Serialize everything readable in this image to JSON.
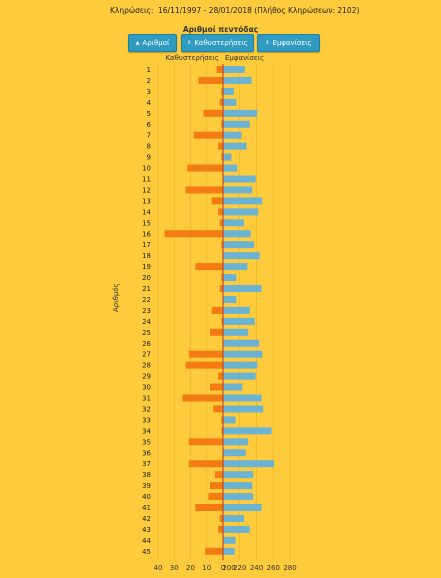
{
  "header": {
    "draws_label": "Κληρώσεις:",
    "range_text": "16/11/1997 - 28/01/2018  (Πλήθος Κληρώσεων: 2102)"
  },
  "title": "Αριθμοί πεντόδας",
  "buttons": [
    {
      "label": "Αριθμοί",
      "icon": "sort-asc-icon",
      "arrow": "▲"
    },
    {
      "label": "Καθυστερήσεις",
      "icon": "sort-both-icon",
      "arrow": "⇕"
    },
    {
      "label": "Εμφανίσεις",
      "icon": "sort-both-icon",
      "arrow": "⇕"
    }
  ],
  "colors": {
    "background": "#fdcb3b",
    "delays_bar": "#f47b12",
    "appearances_bar": "#6ab3d3",
    "button": "#2f9bc1",
    "zero_line": "#cc3311"
  },
  "chart_data": {
    "type": "bar",
    "orientation": "horizontal",
    "ylabel": "Αριθμός",
    "categories": [
      "1",
      "2",
      "3",
      "4",
      "5",
      "6",
      "7",
      "8",
      "9",
      "10",
      "11",
      "12",
      "13",
      "14",
      "15",
      "16",
      "17",
      "18",
      "19",
      "20",
      "21",
      "22",
      "23",
      "24",
      "25",
      "26",
      "27",
      "28",
      "29",
      "30",
      "31",
      "32",
      "33",
      "34",
      "35",
      "36",
      "37",
      "38",
      "39",
      "40",
      "41",
      "42",
      "43",
      "44",
      "45"
    ],
    "series": [
      {
        "name": "Καθυστερήσεις",
        "values": [
          4,
          15,
          1,
          2,
          12,
          1,
          18,
          3,
          1,
          22,
          0,
          23,
          7,
          3,
          2,
          36,
          1,
          0,
          17,
          1,
          2,
          0,
          7,
          1,
          8,
          0,
          21,
          23,
          3,
          8,
          25,
          6,
          1,
          1,
          21,
          0,
          21,
          5,
          8,
          9,
          17,
          2,
          3,
          0,
          11
        ]
      },
      {
        "name": "Εμφανίσεις",
        "values": [
          226,
          234,
          213,
          216,
          241,
          232,
          222,
          228,
          210,
          217,
          239,
          235,
          247,
          242,
          225,
          233,
          237,
          244,
          229,
          216,
          246,
          216,
          232,
          238,
          230,
          243,
          247,
          241,
          239,
          223,
          246,
          248,
          215,
          258,
          230,
          227,
          261,
          236,
          235,
          236,
          246,
          225,
          232,
          215,
          214
        ]
      }
    ],
    "delays_axis": {
      "ticks": [
        40,
        30,
        20,
        10,
        0
      ],
      "range": [
        0,
        40
      ]
    },
    "appearances_axis": {
      "ticks": [
        200,
        220,
        240,
        260,
        280
      ],
      "range": [
        200,
        280
      ]
    },
    "grid": true,
    "legend": "top"
  }
}
